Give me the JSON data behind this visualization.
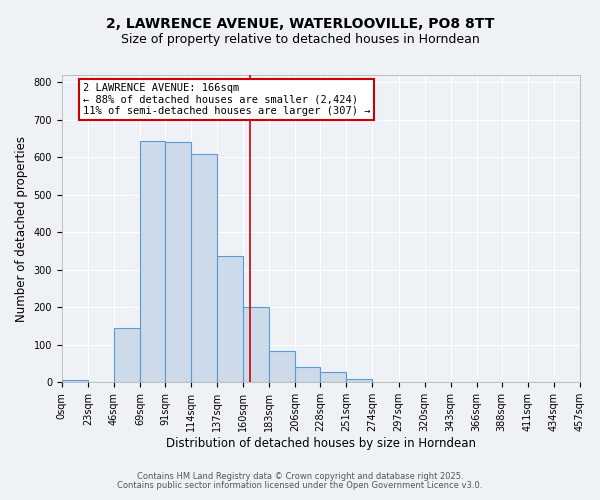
{
  "title": "2, LAWRENCE AVENUE, WATERLOOVILLE, PO8 8TT",
  "subtitle": "Size of property relative to detached houses in Horndean",
  "xlabel": "Distribution of detached houses by size in Horndean",
  "ylabel": "Number of detached properties",
  "bar_edges": [
    0,
    23,
    46,
    69,
    91,
    114,
    137,
    160,
    183,
    206,
    228,
    251,
    274,
    297,
    320,
    343,
    366,
    388,
    411,
    434,
    457
  ],
  "bar_heights": [
    5,
    0,
    145,
    645,
    640,
    610,
    338,
    200,
    83,
    42,
    27,
    10,
    0,
    0,
    0,
    0,
    0,
    0,
    0,
    0
  ],
  "bar_color": "#ccdaea",
  "bar_edge_color": "#5b9bd5",
  "vline_x": 166,
  "vline_color": "#cc0000",
  "annotation_lines": [
    "2 LAWRENCE AVENUE: 166sqm",
    "← 88% of detached houses are smaller (2,424)",
    "11% of semi-detached houses are larger (307) →"
  ],
  "ylim": [
    0,
    820
  ],
  "yticks": [
    0,
    100,
    200,
    300,
    400,
    500,
    600,
    700,
    800
  ],
  "tick_labels": [
    "0sqm",
    "23sqm",
    "46sqm",
    "69sqm",
    "91sqm",
    "114sqm",
    "137sqm",
    "160sqm",
    "183sqm",
    "206sqm",
    "228sqm",
    "251sqm",
    "274sqm",
    "297sqm",
    "320sqm",
    "343sqm",
    "366sqm",
    "388sqm",
    "411sqm",
    "434sqm",
    "457sqm"
  ],
  "footer1": "Contains HM Land Registry data © Crown copyright and database right 2025.",
  "footer2": "Contains public sector information licensed under the Open Government Licence v3.0.",
  "bg_color": "#eef2f7",
  "grid_color": "#ffffff",
  "title_fontsize": 10,
  "subtitle_fontsize": 9,
  "axis_label_fontsize": 8.5,
  "tick_fontsize": 7,
  "annotation_fontsize": 7.5,
  "footer_fontsize": 6
}
